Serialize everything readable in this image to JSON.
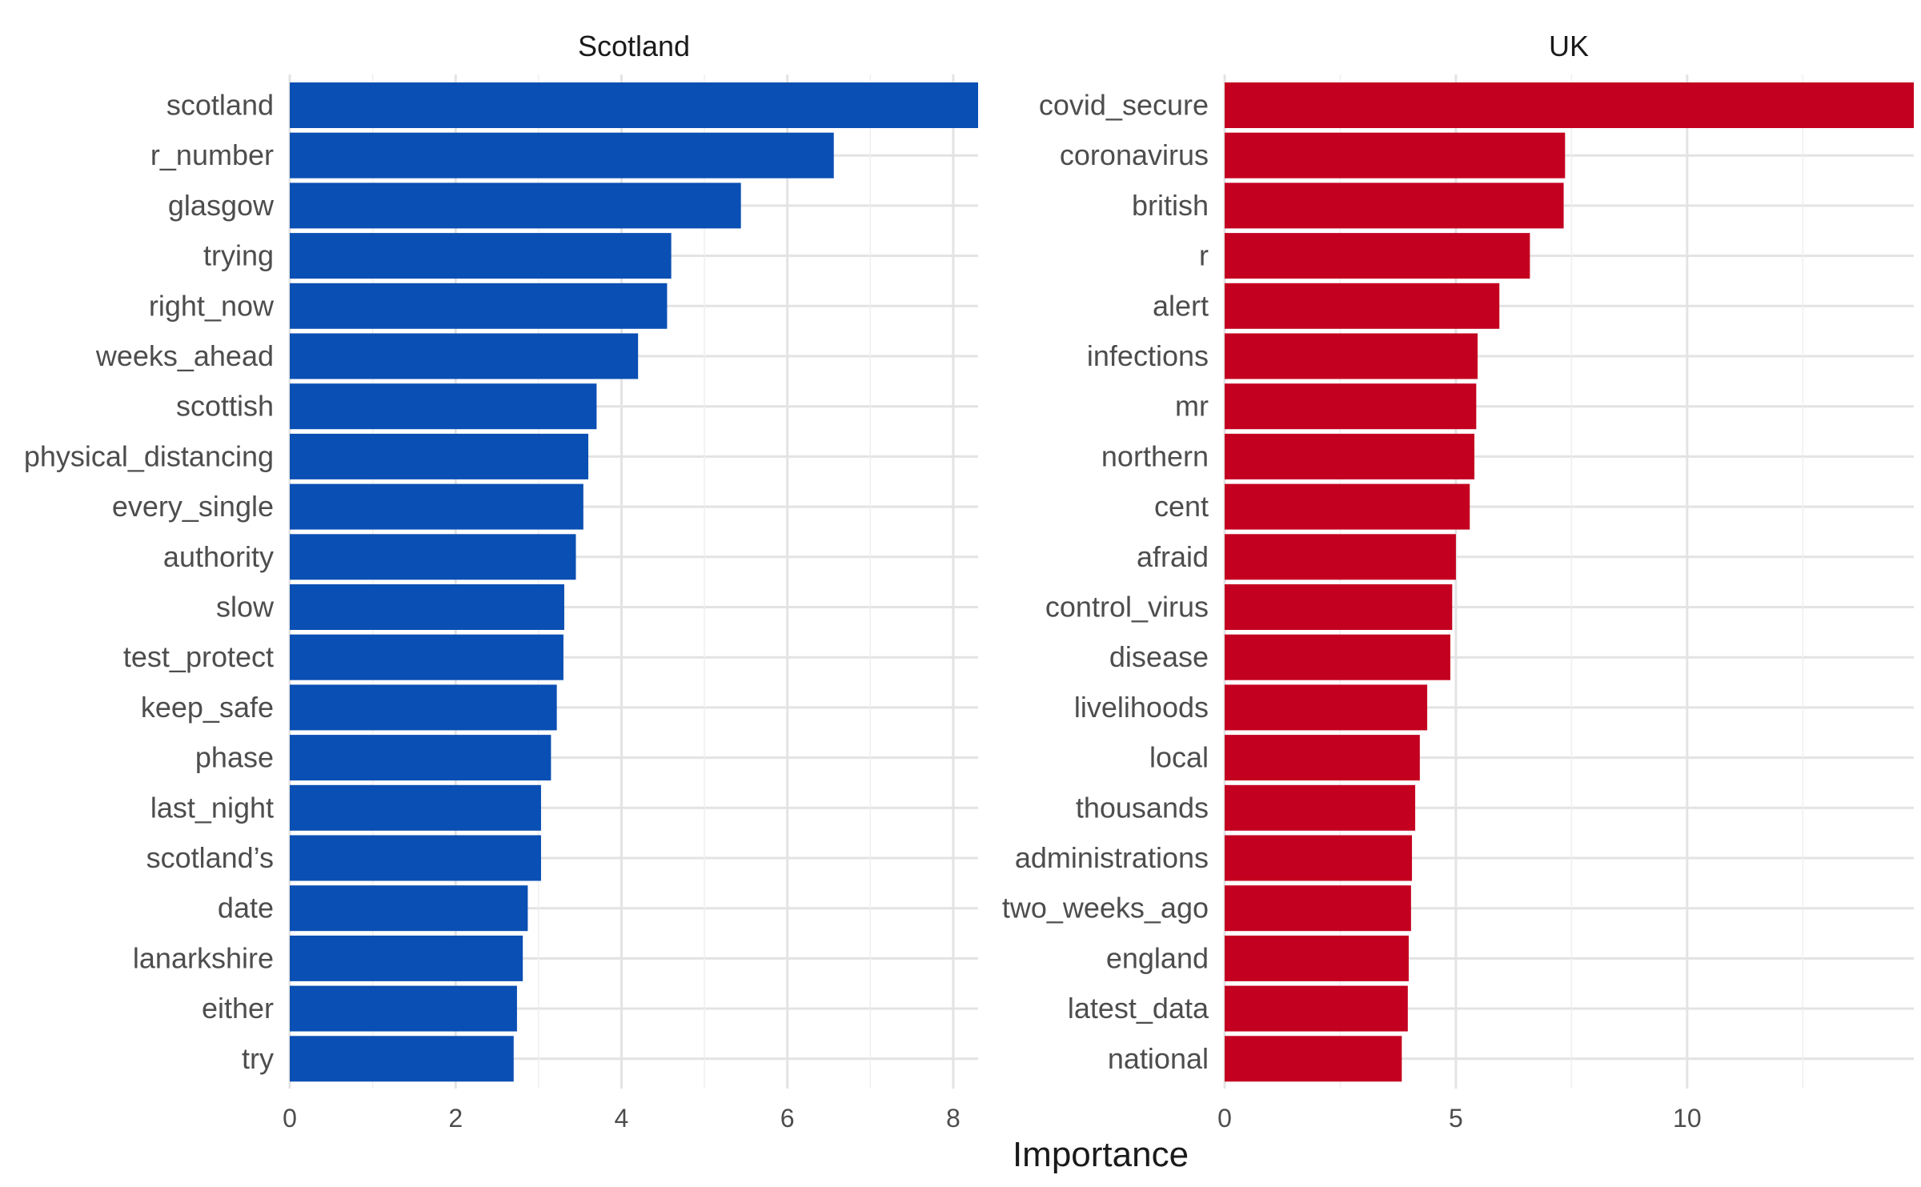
{
  "chart_data": {
    "type": "bar",
    "orientation": "horizontal",
    "xlabel": "Importance",
    "ylabel": "",
    "grid": true,
    "panels": [
      {
        "title": "Scotland",
        "color": "#0a4fb3",
        "xlim": [
          0,
          8.3
        ],
        "ticks": [
          0,
          2,
          4,
          6,
          8
        ],
        "categories": [
          "scotland",
          "r_number",
          "glasgow",
          "trying",
          "right_now",
          "weeks_ahead",
          "scottish",
          "physical_distancing",
          "every_single",
          "authority",
          "slow",
          "test_protect",
          "keep_safe",
          "phase",
          "last_night",
          "scotland’s",
          "date",
          "lanarkshire",
          "either",
          "try"
        ],
        "values": [
          8.3,
          6.56,
          5.44,
          4.6,
          4.55,
          4.2,
          3.7,
          3.6,
          3.54,
          3.45,
          3.31,
          3.3,
          3.22,
          3.15,
          3.03,
          3.03,
          2.87,
          2.81,
          2.74,
          2.7
        ]
      },
      {
        "title": "UK",
        "color": "#c40020",
        "xlim": [
          0,
          14.9
        ],
        "ticks": [
          0,
          5,
          10
        ],
        "categories": [
          "covid_secure",
          "coronavirus",
          "british",
          "r",
          "alert",
          "infections",
          "mr",
          "northern",
          "cent",
          "afraid",
          "control_virus",
          "disease",
          "livelihoods",
          "local",
          "thousands",
          "administrations",
          "two_weeks_ago",
          "england",
          "latest_data",
          "national"
        ],
        "values": [
          14.9,
          7.36,
          7.33,
          6.6,
          5.94,
          5.47,
          5.44,
          5.4,
          5.3,
          5.0,
          4.92,
          4.88,
          4.38,
          4.22,
          4.12,
          4.05,
          4.03,
          3.98,
          3.96,
          3.83
        ]
      }
    ]
  }
}
